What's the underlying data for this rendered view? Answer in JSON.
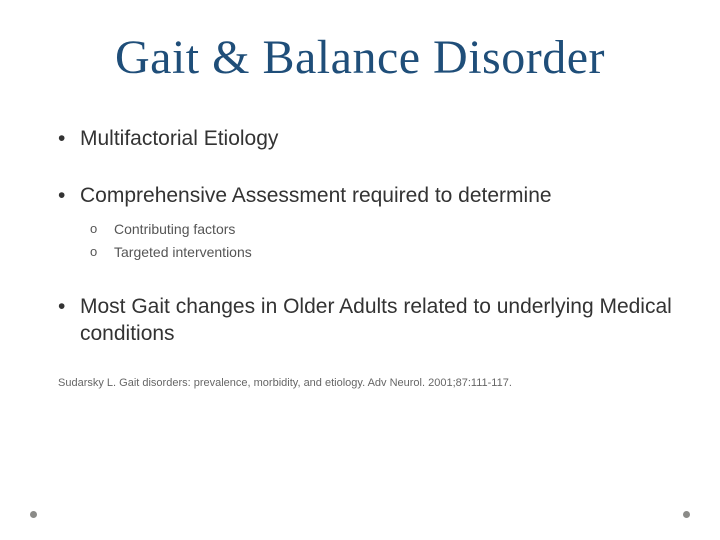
{
  "title": "Gait & Balance Disorder",
  "title_color": "#1f4e79",
  "title_fontsize": 48,
  "title_font_family": "Garamond, Georgia, serif",
  "body_fontsize": 21,
  "body_color": "#333333",
  "sub_fontsize": 14,
  "sub_color": "#555555",
  "citation_fontsize": 11,
  "citation_color": "#666666",
  "background_color": "#ffffff",
  "dot_color": "#8b8b88",
  "bullets": [
    {
      "text": "Multifactorial Etiology",
      "sub": []
    },
    {
      "text": "Comprehensive Assessment  required to determine",
      "sub": [
        "Contributing factors",
        "Targeted interventions"
      ]
    },
    {
      "text": "Most Gait changes  in Older Adults  related to underlying Medical conditions",
      "sub": []
    }
  ],
  "citation": "Sudarsky L. Gait disorders: prevalence, morbidity, and etiology. Adv Neurol. 2001;87:111-117."
}
